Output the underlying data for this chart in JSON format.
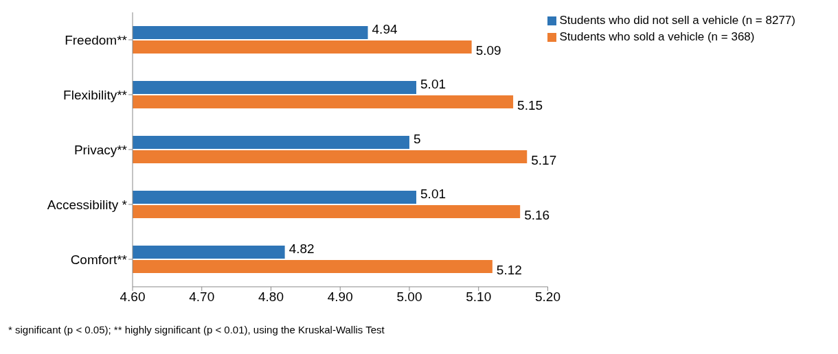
{
  "chart_data": {
    "type": "bar",
    "orientation": "horizontal",
    "categories": [
      "Freedom**",
      "Flexibility**",
      "Privacy**",
      "Accessibility *",
      "Comfort**"
    ],
    "series": [
      {
        "name": "Students who did not sell a vehicle (n = 8277)",
        "color": "#2e75b6",
        "values": [
          4.94,
          5.01,
          5,
          5.01,
          4.82
        ]
      },
      {
        "name": "Students who sold a vehicle (n = 368)",
        "color": "#ed7d31",
        "values": [
          5.09,
          5.15,
          5.17,
          5.16,
          5.12
        ]
      }
    ],
    "xlim": [
      4.6,
      5.2
    ],
    "xticks": [
      {
        "value": 4.6,
        "label": "4.60"
      },
      {
        "value": 4.7,
        "label": "4.70"
      },
      {
        "value": 4.8,
        "label": "4.80"
      },
      {
        "value": 4.9,
        "label": "4.90"
      },
      {
        "value": 5.0,
        "label": "5.00"
      },
      {
        "value": 5.1,
        "label": "5.10"
      },
      {
        "value": 5.2,
        "label": "5.20"
      }
    ],
    "data_labels": true,
    "grid": false,
    "legend": "top right",
    "annotations": [
      "* significant (p < 0.05); ** highly significant (p < 0.01), using the Kruskal-Wallis Test"
    ]
  }
}
